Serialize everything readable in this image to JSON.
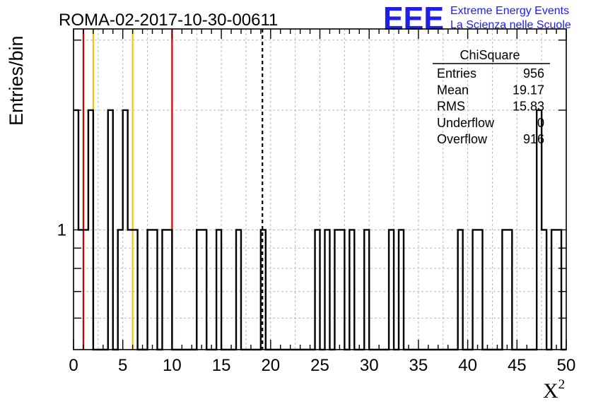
{
  "header": {
    "title": "ROMA-02-2017-10-30-00611",
    "logo": "EEE",
    "logo_line1": "Extreme Energy Events",
    "logo_line2": "La Scienza nelle Scuole",
    "logo_color": "#1f1fe6"
  },
  "stats_box": {
    "title": "ChiSquare",
    "rows": [
      {
        "label": "Entries",
        "value": "956"
      },
      {
        "label": "Mean",
        "value": "19.17"
      },
      {
        "label": "RMS",
        "value": "15.83"
      },
      {
        "label": "Underflow",
        "value": "0"
      },
      {
        "label": "Overflow",
        "value": "916"
      }
    ]
  },
  "chart_data": {
    "type": "histogram",
    "title": "ROMA-02-2017-10-30-00611",
    "xlabel": "X",
    "xlabel_superscript": "2",
    "ylabel": "Entries/bin",
    "xlim": [
      0,
      50
    ],
    "ylim": [
      0.5,
      3.2
    ],
    "yscale": "log",
    "grid": true,
    "bin_width": 0.5,
    "xticks": [
      "0",
      "5",
      "10",
      "15",
      "20",
      "25",
      "30",
      "35",
      "40",
      "45",
      "50"
    ],
    "yticks": [
      "1"
    ],
    "nonzero_bins": [
      {
        "x": 0.0,
        "y": 2
      },
      {
        "x": 0.5,
        "y": 1
      },
      {
        "x": 1.0,
        "y": 1
      },
      {
        "x": 1.5,
        "y": 2
      },
      {
        "x": 3.5,
        "y": 2
      },
      {
        "x": 4.5,
        "y": 1
      },
      {
        "x": 5.0,
        "y": 2
      },
      {
        "x": 5.5,
        "y": 1
      },
      {
        "x": 6.0,
        "y": 1
      },
      {
        "x": 7.5,
        "y": 1
      },
      {
        "x": 8.0,
        "y": 1
      },
      {
        "x": 9.0,
        "y": 1
      },
      {
        "x": 9.5,
        "y": 1
      },
      {
        "x": 12.5,
        "y": 1
      },
      {
        "x": 13.0,
        "y": 1
      },
      {
        "x": 14.5,
        "y": 1
      },
      {
        "x": 16.5,
        "y": 1
      },
      {
        "x": 19.0,
        "y": 1
      },
      {
        "x": 24.5,
        "y": 1
      },
      {
        "x": 25.5,
        "y": 1
      },
      {
        "x": 26.5,
        "y": 1
      },
      {
        "x": 27.0,
        "y": 1
      },
      {
        "x": 28.0,
        "y": 1
      },
      {
        "x": 29.5,
        "y": 1
      },
      {
        "x": 32.0,
        "y": 1
      },
      {
        "x": 33.0,
        "y": 1
      },
      {
        "x": 39.0,
        "y": 1
      },
      {
        "x": 40.5,
        "y": 1
      },
      {
        "x": 41.0,
        "y": 1
      },
      {
        "x": 43.5,
        "y": 1
      },
      {
        "x": 44.0,
        "y": 1
      },
      {
        "x": 47.0,
        "y": 2
      },
      {
        "x": 47.5,
        "y": 1
      },
      {
        "x": 48.5,
        "y": 1
      },
      {
        "x": 49.0,
        "y": 1
      }
    ],
    "reference_lines": [
      {
        "x": 1,
        "color": "#cc0000",
        "style": "solid"
      },
      {
        "x": 2,
        "color": "#f0c020",
        "style": "solid"
      },
      {
        "x": 6,
        "color": "#f0c020",
        "style": "solid"
      },
      {
        "x": 10,
        "color": "#cc0000",
        "style": "solid"
      },
      {
        "x": 19.17,
        "color": "#000000",
        "style": "dashed"
      }
    ]
  }
}
